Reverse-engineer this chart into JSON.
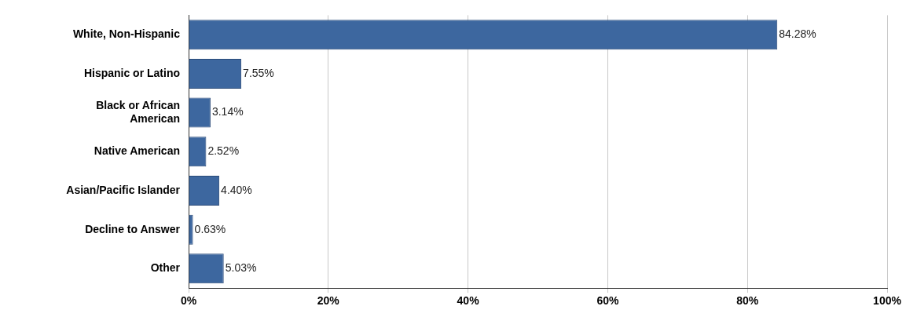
{
  "chart_data": {
    "type": "bar",
    "orientation": "horizontal",
    "categories": [
      "White, Non-Hispanic",
      "Hispanic or Latino",
      "Black or African American",
      "Native American",
      "Asian/Pacific Islander",
      "Decline to Answer",
      "Other"
    ],
    "values": [
      84.28,
      7.55,
      3.14,
      2.52,
      4.4,
      0.63,
      5.03
    ],
    "value_labels": [
      "84.28%",
      "7.55%",
      "3.14%",
      "2.52%",
      "4.40%",
      "0.63%",
      "5.03%"
    ],
    "color": "#3d679f",
    "xlim": [
      0,
      100
    ],
    "xticks": [
      {
        "value": 0,
        "label": "0%"
      },
      {
        "value": 20,
        "label": "20%"
      },
      {
        "value": 40,
        "label": "40%"
      },
      {
        "value": 60,
        "label": "60%"
      },
      {
        "value": 80,
        "label": "80%"
      },
      {
        "value": 100,
        "label": "100%"
      }
    ],
    "grid": "x",
    "legend": false
  }
}
